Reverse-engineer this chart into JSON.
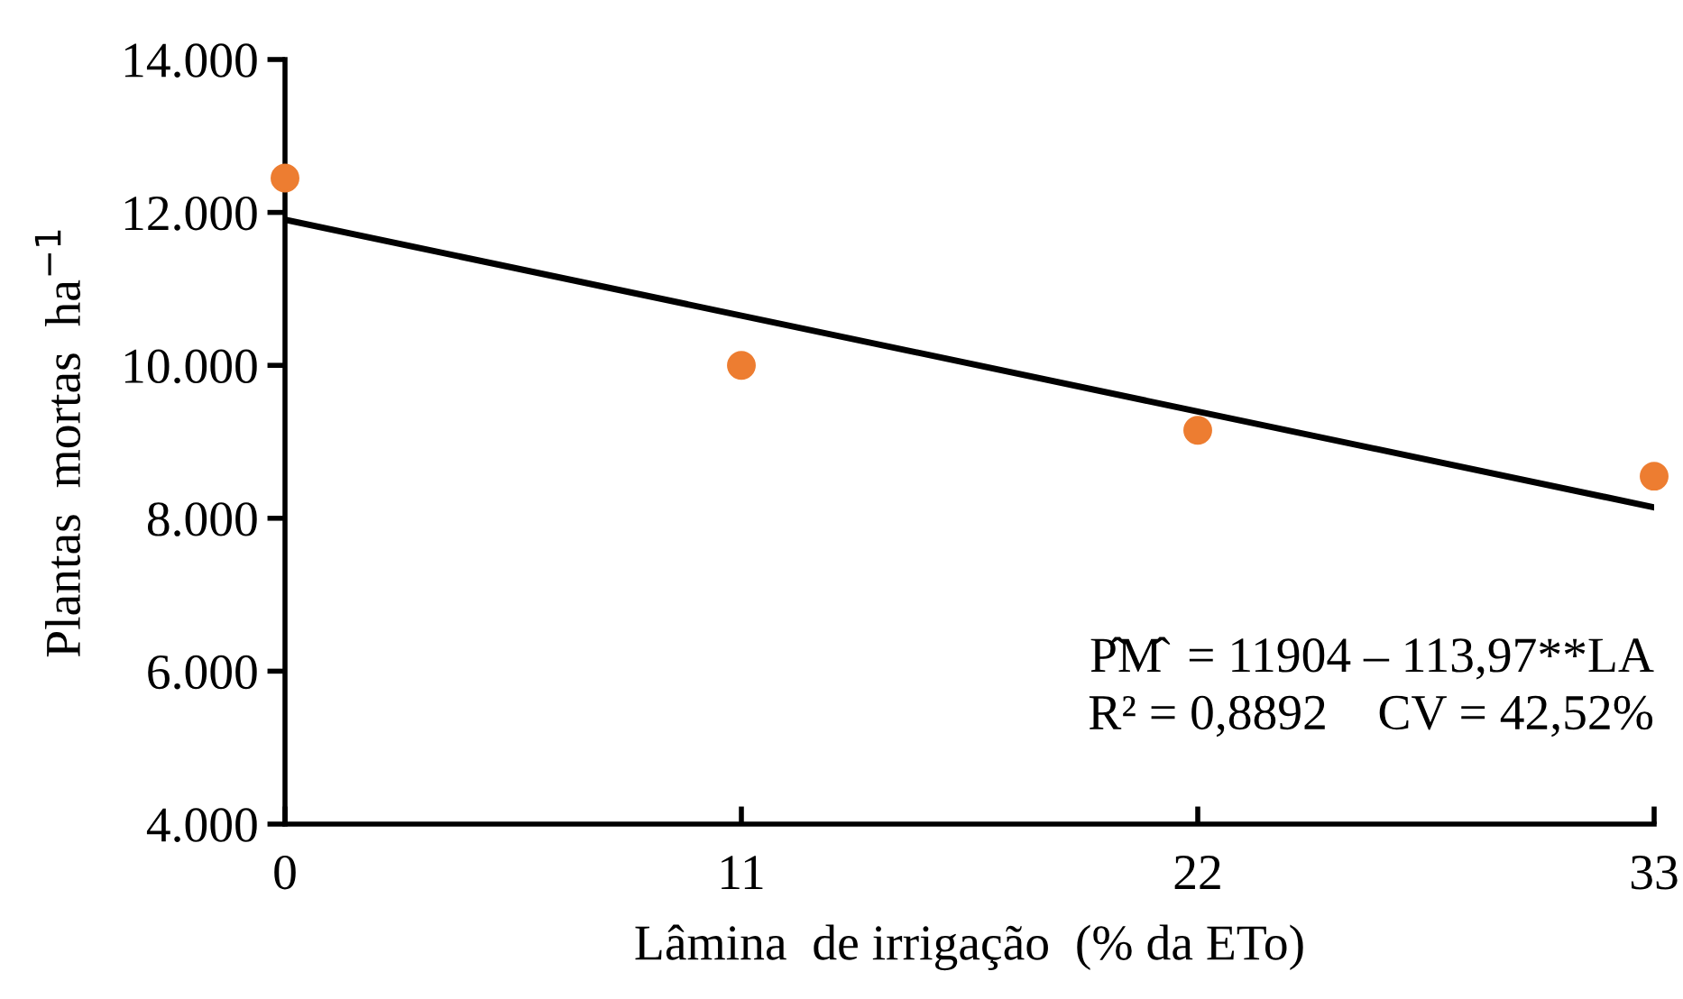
{
  "chart_data": {
    "type": "scatter",
    "xlabel": "Lâmina  de irrigação  (% da ETo)",
    "ylabel": "Plantas  mortas  ha$^{−1}$",
    "x": [
      0,
      11,
      22,
      33
    ],
    "series": [
      {
        "color": "#ed7d31",
        "values": [
          12450,
          10000,
          9150,
          8550
        ],
        "marker": "circle"
      },
      {
        "type": "line",
        "color": "#000000",
        "x": [
          0,
          33
        ],
        "values": [
          11904,
          8143
        ],
        "marker": "none",
        "line_style": "solid"
      }
    ],
    "xlim": [
      0,
      33
    ],
    "xticks": [
      0,
      11,
      22,
      33
    ],
    "ylim": [
      4000,
      14000
    ],
    "yticks": [
      {
        "value": 4000,
        "label": "4.000"
      },
      {
        "value": 6000,
        "label": "6.000"
      },
      {
        "value": 8000,
        "label": "8.000"
      },
      {
        "value": 10000,
        "label": "10.000"
      },
      {
        "value": 12000,
        "label": "12.000"
      },
      {
        "value": 14000,
        "label": "14.000"
      }
    ],
    "annotations": [
      "P̂M̂  = 11904 – 113,97**LA",
      "R² = 0,8892    CV = 42,52%"
    ],
    "grid": false,
    "legend": false
  }
}
